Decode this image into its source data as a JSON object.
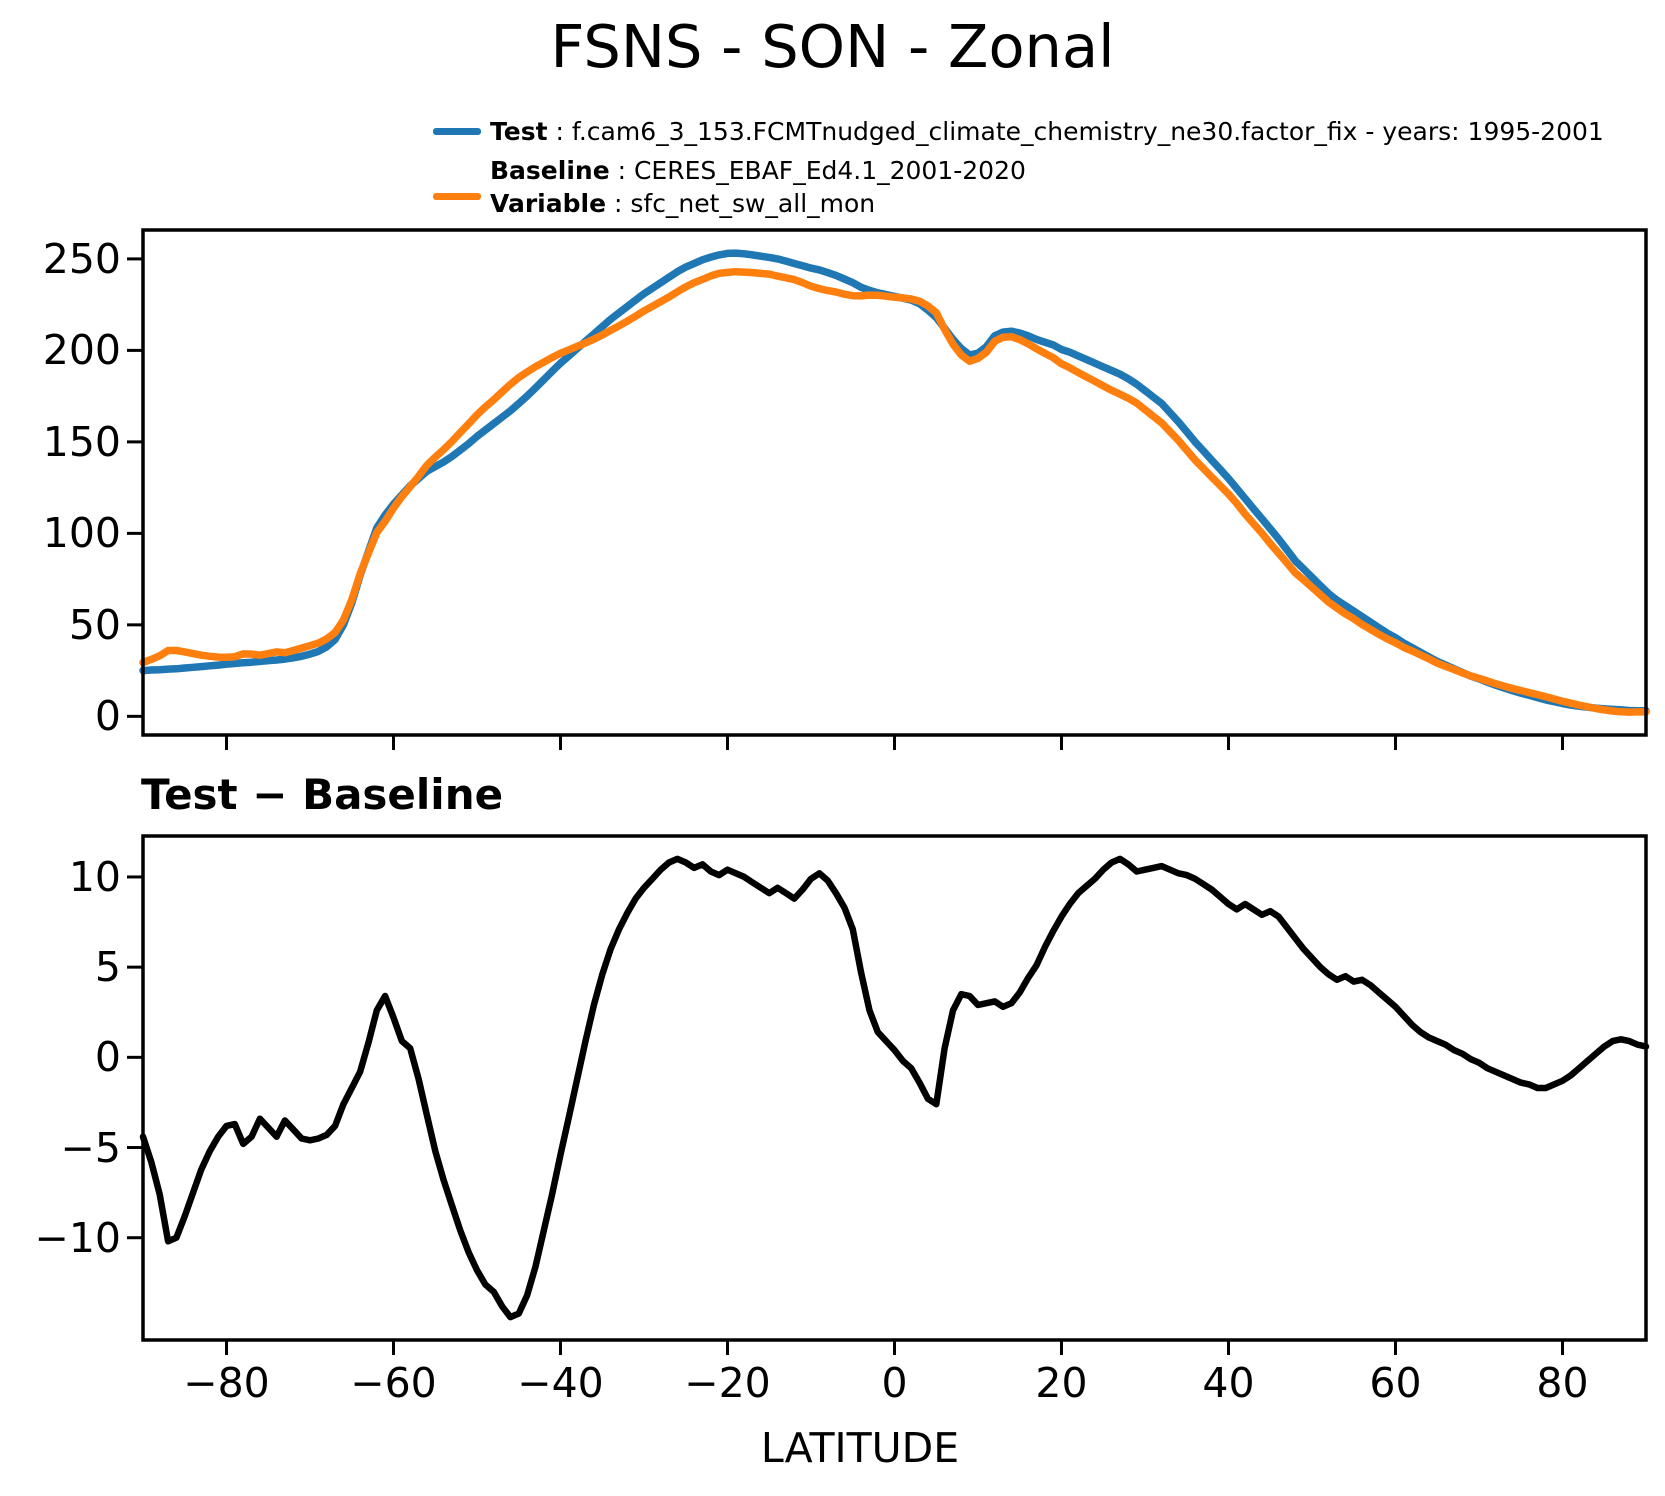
{
  "title": "FSNS - SON - Zonal",
  "legend": {
    "test_label": "Test",
    "test_rest": " : f.cam6_3_153.FCMTnudged_climate_chemistry_ne30.factor_fix - years: 1995-2001",
    "baseline_label": "Baseline",
    "baseline_rest": " : CERES_EBAF_Ed4.1_2001-2020",
    "variable_label": "Variable",
    "variable_rest": " : sfc_net_sw_all_mon"
  },
  "panel2_title": "Test − Baseline",
  "xlabel": "LATITUDE",
  "colors": {
    "test": "#1f77b4",
    "baseline": "#ff7f0e",
    "diff": "#000000",
    "axis": "#000000"
  },
  "chart_data": [
    {
      "type": "line",
      "panel": "zonal-mean",
      "xlabel": "LATITUDE",
      "xlim": [
        -90,
        90
      ],
      "ylim": [
        -10.2,
        265.8
      ],
      "xticks": [
        -80,
        -60,
        -40,
        -20,
        0,
        20,
        40,
        60,
        80
      ],
      "yticks": [
        0,
        50,
        100,
        150,
        200,
        250
      ],
      "xtick_labels": false,
      "grid": false,
      "x": [
        -90,
        -89,
        -88,
        -87,
        -86,
        -85,
        -84,
        -83,
        -82,
        -81,
        -80,
        -79,
        -78,
        -77,
        -76,
        -75,
        -74,
        -73,
        -72,
        -71,
        -70,
        -69,
        -68,
        -67,
        -66,
        -65,
        -64,
        -63,
        -62,
        -61,
        -60,
        -59,
        -58,
        -57,
        -56,
        -55,
        -54,
        -53,
        -52,
        -51,
        -50,
        -49,
        -48,
        -47,
        -46,
        -45,
        -44,
        -43,
        -42,
        -41,
        -40,
        -39,
        -38,
        -37,
        -36,
        -35,
        -34,
        -33,
        -32,
        -31,
        -30,
        -29,
        -28,
        -27,
        -26,
        -25,
        -24,
        -23,
        -22,
        -21,
        -20,
        -19,
        -18,
        -17,
        -16,
        -15,
        -14,
        -13,
        -12,
        -11,
        -10,
        -9,
        -8,
        -7,
        -6,
        -5,
        -4,
        -3,
        -2,
        -1,
        0,
        1,
        2,
        3,
        4,
        5,
        6,
        7,
        8,
        9,
        10,
        11,
        12,
        13,
        14,
        15,
        16,
        17,
        18,
        19,
        20,
        21,
        22,
        23,
        24,
        25,
        26,
        27,
        28,
        29,
        30,
        31,
        32,
        33,
        34,
        35,
        36,
        37,
        38,
        39,
        40,
        41,
        42,
        43,
        44,
        45,
        46,
        47,
        48,
        49,
        50,
        51,
        52,
        53,
        54,
        55,
        56,
        57,
        58,
        59,
        60,
        61,
        62,
        63,
        64,
        65,
        66,
        67,
        68,
        69,
        70,
        71,
        72,
        73,
        74,
        75,
        76,
        77,
        78,
        79,
        80,
        81,
        82,
        83,
        84,
        85,
        86,
        87,
        88,
        89,
        90
      ],
      "series": [
        {
          "name": "Test",
          "key": "test",
          "color_key": "test",
          "values": [
            25,
            25.3,
            25.5,
            25.8,
            26,
            26.4,
            26.8,
            27.2,
            27.6,
            28,
            28.5,
            28.9,
            29.3,
            29.6,
            30,
            30.4,
            30.8,
            31.3,
            32,
            32.8,
            34,
            35.5,
            38,
            42,
            50,
            62,
            77,
            90,
            103,
            110,
            116,
            121,
            126,
            130,
            134,
            136.5,
            139,
            142,
            145.5,
            149,
            153,
            156.5,
            160,
            163.5,
            167,
            171,
            175,
            179.5,
            184,
            188.5,
            193,
            197,
            201,
            205,
            209,
            213,
            217,
            220.5,
            224,
            227.5,
            231,
            234,
            237,
            240,
            243,
            245.5,
            247.5,
            249.5,
            251,
            252.2,
            253,
            253.2,
            252.8,
            252.2,
            251.5,
            250.8,
            250,
            248.8,
            247.5,
            246.3,
            245,
            244,
            242.5,
            241,
            239,
            237,
            234.5,
            232.8,
            231.5,
            230.5,
            229.5,
            228.5,
            227.5,
            225.5,
            222,
            218,
            212,
            206,
            201,
            197.5,
            198.5,
            202,
            208,
            210,
            210.5,
            209.5,
            208,
            206,
            204.5,
            203,
            200.5,
            199,
            197,
            195,
            193,
            191,
            189,
            187,
            184.5,
            181.5,
            178,
            174.5,
            171,
            166,
            161,
            155.5,
            150,
            145,
            140,
            135,
            130,
            124.5,
            119,
            113.5,
            108,
            102.5,
            97,
            91,
            85,
            80.5,
            76,
            71.5,
            67,
            63.5,
            60.5,
            57.5,
            54.5,
            51.5,
            48.5,
            45.5,
            43,
            40,
            37.5,
            35,
            32.5,
            30,
            28,
            26,
            24,
            22,
            20.5,
            18.7,
            17,
            15.5,
            14,
            12.7,
            11.5,
            10.2,
            9,
            8,
            7,
            6.2,
            5.5,
            5,
            4.5,
            4.1,
            3.8,
            3.5,
            3.2,
            3.1,
            3
          ]
        },
        {
          "name": "Baseline",
          "key": "baseline",
          "color_key": "baseline",
          "values": [
            29.4,
            31.1,
            33.1,
            36,
            36,
            35.2,
            34.3,
            33.4,
            32.8,
            32.4,
            32.3,
            32.6,
            34.1,
            34,
            33.4,
            34.3,
            35.2,
            34.8,
            36,
            37.3,
            38.6,
            40,
            42.3,
            45.8,
            52.6,
            63.7,
            77.8,
            89.2,
            100.4,
            106.6,
            113.8,
            120.1,
            125.5,
            131.2,
            137.2,
            141.7,
            145.8,
            150.2,
            155.1,
            159.8,
            164.8,
            169.1,
            173,
            177.3,
            181.4,
            185.2,
            188.2,
            191.1,
            193.6,
            196.1,
            198.4,
            200.3,
            202.2,
            204.1,
            206.1,
            208.4,
            211,
            213.4,
            216,
            218.7,
            221.6,
            224.1,
            226.6,
            229.2,
            232,
            234.7,
            237,
            238.8,
            240.7,
            242.1,
            242.6,
            243,
            242.8,
            242.5,
            242.1,
            241.7,
            240.6,
            239.7,
            238.7,
            237,
            235.1,
            233.8,
            232.7,
            231.9,
            230.7,
            229.9,
            229.8,
            230.2,
            230.1,
            229.6,
            229.1,
            228.7,
            228.1,
            226.9,
            224.3,
            220.6,
            211.5,
            203.4,
            197.5,
            194.1,
            195.6,
            199,
            204.9,
            207.2,
            207.5,
            205.9,
            203.6,
            200.9,
            198.4,
            196,
            192.7,
            190.5,
            187.9,
            185.5,
            183.1,
            180.6,
            178.2,
            176,
            173.8,
            171.2,
            167.6,
            164,
            160.4,
            155.6,
            150.8,
            145.4,
            140.1,
            135.4,
            130.7,
            126.1,
            121.5,
            116.3,
            110.5,
            105.3,
            100.1,
            94.4,
            89.2,
            83.8,
            78.4,
            74.5,
            70.5,
            66.5,
            62.4,
            59.2,
            56,
            53.3,
            50.2,
            47.5,
            44.9,
            42.3,
            40.2,
            37.7,
            35.7,
            33.6,
            31.4,
            29.1,
            27.3,
            25.6,
            23.8,
            22.1,
            20.8,
            19.3,
            17.8,
            16.5,
            15.2,
            14.1,
            13,
            11.9,
            10.7,
            9.5,
            8.3,
            7.2,
            6.1,
            5.2,
            4.3,
            3.5,
            2.9,
            2.5,
            2.3,
            2.4,
            2.4
          ]
        }
      ]
    },
    {
      "type": "line",
      "panel": "difference",
      "title": "Test − Baseline",
      "xlabel": "LATITUDE",
      "xlim": [
        -90,
        90
      ],
      "ylim": [
        -15.67,
        12.27
      ],
      "xticks": [
        -80,
        -60,
        -40,
        -20,
        0,
        20,
        40,
        60,
        80
      ],
      "yticks": [
        -10,
        -5,
        0,
        5,
        10
      ],
      "xtick_labels": true,
      "grid": false,
      "x": [
        -90,
        -89,
        -88,
        -87,
        -86,
        -85,
        -84,
        -83,
        -82,
        -81,
        -80,
        -79,
        -78,
        -77,
        -76,
        -75,
        -74,
        -73,
        -72,
        -71,
        -70,
        -69,
        -68,
        -67,
        -66,
        -65,
        -64,
        -63,
        -62,
        -61,
        -60,
        -59,
        -58,
        -57,
        -56,
        -55,
        -54,
        -53,
        -52,
        -51,
        -50,
        -49,
        -48,
        -47,
        -46,
        -45,
        -44,
        -43,
        -42,
        -41,
        -40,
        -39,
        -38,
        -37,
        -36,
        -35,
        -34,
        -33,
        -32,
        -31,
        -30,
        -29,
        -28,
        -27,
        -26,
        -25,
        -24,
        -23,
        -22,
        -21,
        -20,
        -19,
        -18,
        -17,
        -16,
        -15,
        -14,
        -13,
        -12,
        -11,
        -10,
        -9,
        -8,
        -7,
        -6,
        -5,
        -4,
        -3,
        -2,
        -1,
        0,
        1,
        2,
        3,
        4,
        5,
        6,
        7,
        8,
        9,
        10,
        11,
        12,
        13,
        14,
        15,
        16,
        17,
        18,
        19,
        20,
        21,
        22,
        23,
        24,
        25,
        26,
        27,
        28,
        29,
        30,
        31,
        32,
        33,
        34,
        35,
        36,
        37,
        38,
        39,
        40,
        41,
        42,
        43,
        44,
        45,
        46,
        47,
        48,
        49,
        50,
        51,
        52,
        53,
        54,
        55,
        56,
        57,
        58,
        59,
        60,
        61,
        62,
        63,
        64,
        65,
        66,
        67,
        68,
        69,
        70,
        71,
        72,
        73,
        74,
        75,
        76,
        77,
        78,
        79,
        80,
        81,
        82,
        83,
        84,
        85,
        86,
        87,
        88,
        89,
        90
      ],
      "series": [
        {
          "name": "Test − Baseline",
          "key": "diff",
          "color_key": "diff",
          "values": [
            -4.4,
            -5.8,
            -7.6,
            -10.2,
            -10,
            -8.8,
            -7.5,
            -6.2,
            -5.2,
            -4.4,
            -3.8,
            -3.7,
            -4.8,
            -4.4,
            -3.4,
            -3.9,
            -4.4,
            -3.5,
            -4,
            -4.5,
            -4.6,
            -4.5,
            -4.3,
            -3.8,
            -2.6,
            -1.7,
            -0.8,
            0.8,
            2.6,
            3.4,
            2.2,
            0.9,
            0.5,
            -1.2,
            -3.2,
            -5.2,
            -6.8,
            -8.2,
            -9.6,
            -10.8,
            -11.8,
            -12.6,
            -13,
            -13.8,
            -14.4,
            -14.2,
            -13.2,
            -11.6,
            -9.6,
            -7.6,
            -5.4,
            -3.3,
            -1.2,
            0.9,
            2.9,
            4.6,
            6,
            7.1,
            8,
            8.8,
            9.4,
            9.9,
            10.4,
            10.8,
            11,
            10.8,
            10.5,
            10.7,
            10.3,
            10.1,
            10.4,
            10.2,
            10,
            9.7,
            9.4,
            9.1,
            9.4,
            9.1,
            8.8,
            9.3,
            9.9,
            10.2,
            9.8,
            9.1,
            8.3,
            7.1,
            4.7,
            2.6,
            1.4,
            0.9,
            0.4,
            -0.2,
            -0.6,
            -1.4,
            -2.3,
            -2.6,
            0.5,
            2.6,
            3.5,
            3.4,
            2.9,
            3,
            3.1,
            2.8,
            3,
            3.6,
            4.4,
            5.1,
            6.1,
            7,
            7.8,
            8.5,
            9.1,
            9.5,
            9.9,
            10.4,
            10.8,
            11,
            10.7,
            10.3,
            10.4,
            10.5,
            10.6,
            10.4,
            10.2,
            10.1,
            9.9,
            9.6,
            9.3,
            8.9,
            8.5,
            8.2,
            8.5,
            8.2,
            7.9,
            8.1,
            7.8,
            7.2,
            6.6,
            6,
            5.5,
            5,
            4.6,
            4.3,
            4.5,
            4.2,
            4.3,
            4,
            3.6,
            3.2,
            2.8,
            2.3,
            1.8,
            1.4,
            1.1,
            0.9,
            0.7,
            0.4,
            0.2,
            -0.1,
            -0.3,
            -0.6,
            -0.8,
            -1,
            -1.2,
            -1.4,
            -1.5,
            -1.7,
            -1.7,
            -1.5,
            -1.3,
            -1,
            -0.6,
            -0.2,
            0.2,
            0.6,
            0.9,
            1,
            0.9,
            0.7,
            0.6
          ]
        }
      ]
    }
  ]
}
